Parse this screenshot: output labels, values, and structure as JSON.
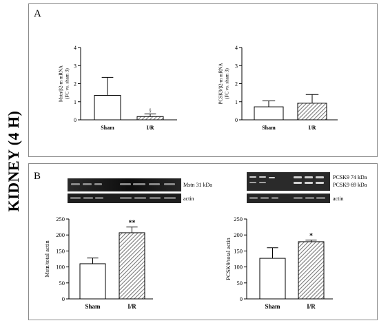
{
  "side_title": "KIDNEY (4 H)",
  "panels": {
    "a_label": "A",
    "b_label": "B"
  },
  "blots": {
    "left": {
      "band1": "Mstn 31 kDa",
      "band2": "actin"
    },
    "right": {
      "band1a": "PCSK9 74 kDa",
      "band1b": "PCSK9 69 kDa",
      "band2": "actin"
    }
  },
  "colors": {
    "bar_edge": "#000000",
    "hatch": "#7a7a7a",
    "panel_border": "#8a8a8a",
    "blot_dark": "#1c1c1c"
  },
  "chart_data": [
    {
      "type": "bar",
      "categories": [
        "Sham",
        "I/R"
      ],
      "values": [
        1.35,
        0.18
      ],
      "errors": [
        1.0,
        0.15
      ],
      "annotations": [
        "",
        "§"
      ],
      "ylabel": "Mstn/β2-m mRNA\n(FC vs. sham 3)",
      "ylim": [
        0,
        4
      ],
      "yticks": [
        0,
        1,
        2,
        3,
        4
      ]
    },
    {
      "type": "bar",
      "categories": [
        "Sham",
        "I/R"
      ],
      "values": [
        0.72,
        0.92
      ],
      "errors": [
        0.33,
        0.48
      ],
      "annotations": [
        "",
        ""
      ],
      "ylabel": "PCSK9/β2-m mRNA\n(FC vs. sham 3)",
      "ylim": [
        0,
        4
      ],
      "yticks": [
        0,
        1,
        2,
        3,
        4
      ]
    },
    {
      "type": "bar",
      "categories": [
        "Sham",
        "I/R"
      ],
      "values": [
        110,
        207
      ],
      "errors": [
        18,
        18
      ],
      "annotations": [
        "",
        "**"
      ],
      "ylabel": "Mstn/total actin",
      "ylim": [
        0,
        250
      ],
      "yticks": [
        0,
        50,
        100,
        150,
        200,
        250
      ]
    },
    {
      "type": "bar",
      "categories": [
        "Sham",
        "I/R"
      ],
      "values": [
        127,
        179
      ],
      "errors": [
        33,
        5
      ],
      "annotations": [
        "",
        "*"
      ],
      "ylabel": "PCSK9/total actin",
      "ylim": [
        0,
        250
      ],
      "yticks": [
        0,
        50,
        100,
        150,
        200,
        250
      ]
    }
  ]
}
